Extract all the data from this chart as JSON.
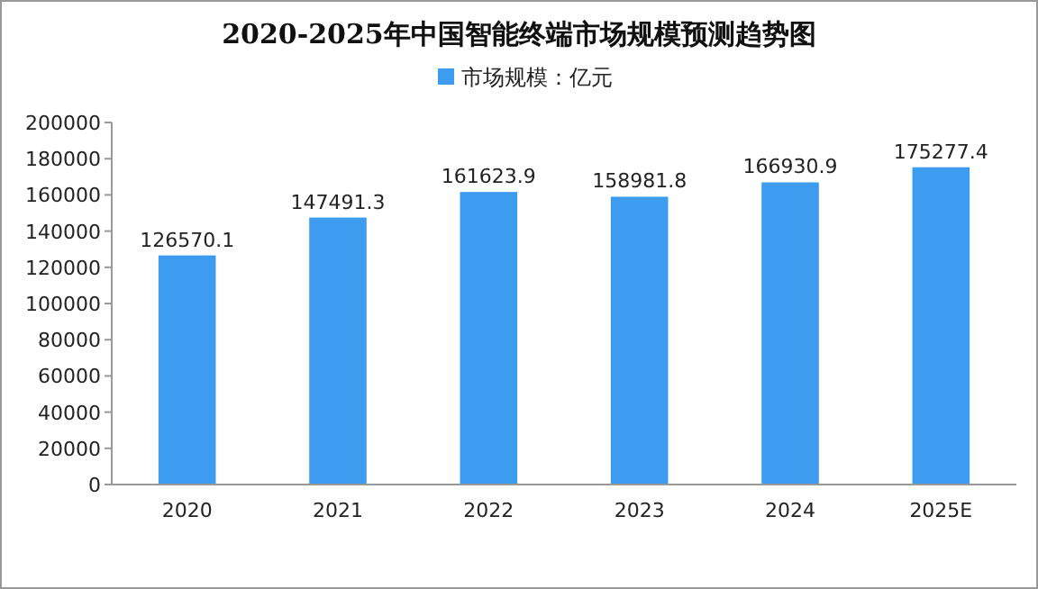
{
  "chart_data": {
    "type": "bar",
    "title": "2020-2025年中国智能终端市场规模预测趋势图",
    "categories": [
      "2020",
      "2021",
      "2022",
      "2023",
      "2024",
      "2025E"
    ],
    "series": [
      {
        "name": "市场规模：亿元",
        "color": "#3d9cf0",
        "values": [
          126570.1,
          147491.3,
          161623.9,
          158981.8,
          166930.9,
          175277.4
        ]
      }
    ],
    "ylim": [
      0,
      200000
    ],
    "yticks": [
      0,
      20000,
      40000,
      60000,
      80000,
      100000,
      120000,
      140000,
      160000,
      180000,
      200000
    ],
    "data_labels": true,
    "legend": "top",
    "grid": false
  }
}
